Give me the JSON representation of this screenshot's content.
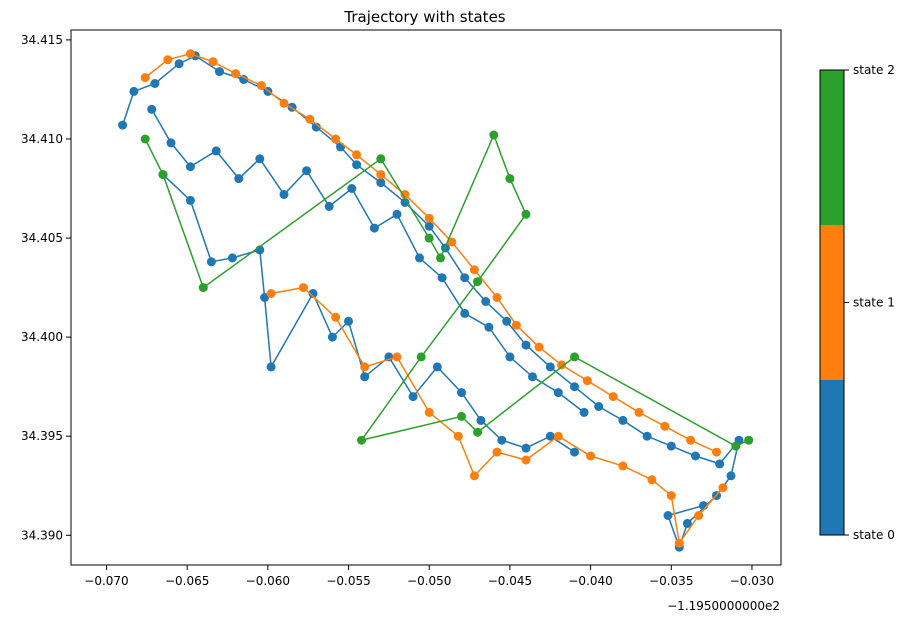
{
  "chart_data": {
    "type": "scatter",
    "title": "Trajectory with states",
    "xlabel": "",
    "ylabel": "",
    "x_offset_label": "−1.1950000000e2",
    "xlim": [
      -0.0722,
      -0.0282
    ],
    "ylim": [
      34.3885,
      34.4155
    ],
    "x_ticks": [
      -0.07,
      -0.065,
      -0.06,
      -0.055,
      -0.05,
      -0.045,
      -0.04,
      -0.035,
      -0.03
    ],
    "x_tick_labels": [
      "−0.070",
      "−0.065",
      "−0.060",
      "−0.055",
      "−0.050",
      "−0.045",
      "−0.040",
      "−0.035",
      "−0.030"
    ],
    "y_ticks": [
      34.39,
      34.395,
      34.4,
      34.405,
      34.41,
      34.415
    ],
    "y_tick_labels": [
      "34.390",
      "34.395",
      "34.400",
      "34.405",
      "34.410",
      "34.415"
    ],
    "grid": false,
    "legend": "colorbar-right",
    "colorbar": {
      "labels": [
        "state 0",
        "state 1",
        "state 2"
      ],
      "colors": [
        "#1f77b4",
        "#ff7f0e",
        "#2ca02c"
      ]
    },
    "series": [
      {
        "state": 0,
        "color": "#1f77b4",
        "points": [
          [
            -0.069,
            34.4107
          ],
          [
            -0.0683,
            34.4124
          ],
          [
            -0.067,
            34.4128
          ],
          [
            -0.0655,
            34.4138
          ],
          [
            -0.0645,
            34.4142
          ],
          [
            -0.063,
            34.4134
          ],
          [
            -0.0615,
            34.413
          ],
          [
            -0.06,
            34.4124
          ],
          [
            -0.0585,
            34.4116
          ],
          [
            -0.057,
            34.4106
          ],
          [
            -0.0555,
            34.4096
          ],
          [
            -0.0545,
            34.4087
          ],
          [
            -0.053,
            34.4078
          ],
          [
            -0.0515,
            34.4068
          ],
          [
            -0.05,
            34.4056
          ],
          [
            -0.049,
            34.4045
          ],
          [
            -0.0478,
            34.403
          ],
          [
            -0.0465,
            34.4018
          ],
          [
            -0.0452,
            34.4008
          ],
          [
            -0.044,
            34.3996
          ],
          [
            -0.0425,
            34.3985
          ],
          [
            -0.041,
            34.3975
          ],
          [
            -0.0395,
            34.3965
          ],
          [
            -0.038,
            34.3958
          ],
          [
            -0.0365,
            34.395
          ],
          [
            -0.035,
            34.3945
          ],
          [
            -0.0335,
            34.394
          ],
          [
            -0.032,
            34.3936
          ],
          [
            -0.0308,
            34.3948
          ],
          [
            -0.0313,
            34.393
          ],
          [
            -0.0322,
            34.392
          ],
          [
            -0.034,
            34.3906
          ],
          [
            -0.0345,
            34.3894
          ],
          [
            -0.0352,
            34.391
          ],
          [
            -0.033,
            34.3915
          ]
        ]
      },
      {
        "state": 0,
        "color": "#1f77b4",
        "points": [
          [
            -0.0665,
            34.4082
          ],
          [
            -0.0648,
            34.4069
          ],
          [
            -0.0635,
            34.4038
          ],
          [
            -0.0622,
            34.404
          ],
          [
            -0.0605,
            34.4044
          ],
          [
            -0.0602,
            34.402
          ],
          [
            -0.0598,
            34.3985
          ],
          [
            -0.0572,
            34.4022
          ],
          [
            -0.056,
            34.4
          ],
          [
            -0.055,
            34.4008
          ],
          [
            -0.054,
            34.398
          ],
          [
            -0.0525,
            34.399
          ],
          [
            -0.051,
            34.397
          ],
          [
            -0.0495,
            34.3985
          ],
          [
            -0.048,
            34.3972
          ],
          [
            -0.0468,
            34.3958
          ],
          [
            -0.0455,
            34.3948
          ],
          [
            -0.044,
            34.3944
          ],
          [
            -0.0425,
            34.395
          ],
          [
            -0.041,
            34.3942
          ]
        ]
      },
      {
        "state": 0,
        "color": "#1f77b4",
        "points": [
          [
            -0.0672,
            34.4115
          ],
          [
            -0.066,
            34.4098
          ],
          [
            -0.0648,
            34.4086
          ],
          [
            -0.0632,
            34.4094
          ],
          [
            -0.0618,
            34.408
          ],
          [
            -0.0605,
            34.409
          ],
          [
            -0.059,
            34.4072
          ],
          [
            -0.0576,
            34.4084
          ],
          [
            -0.0562,
            34.4066
          ],
          [
            -0.0548,
            34.4075
          ],
          [
            -0.0534,
            34.4055
          ],
          [
            -0.052,
            34.4062
          ],
          [
            -0.0506,
            34.404
          ],
          [
            -0.0492,
            34.403
          ],
          [
            -0.0478,
            34.4012
          ],
          [
            -0.0463,
            34.4005
          ],
          [
            -0.045,
            34.399
          ],
          [
            -0.0436,
            34.398
          ],
          [
            -0.042,
            34.3972
          ],
          [
            -0.0404,
            34.3962
          ]
        ]
      },
      {
        "state": 1,
        "color": "#ff7f0e",
        "points": [
          [
            -0.0676,
            34.4131
          ],
          [
            -0.0662,
            34.414
          ],
          [
            -0.0648,
            34.4143
          ],
          [
            -0.0634,
            34.4139
          ],
          [
            -0.062,
            34.4133
          ],
          [
            -0.0604,
            34.4127
          ],
          [
            -0.059,
            34.4118
          ],
          [
            -0.0574,
            34.411
          ],
          [
            -0.0558,
            34.41
          ],
          [
            -0.0545,
            34.4092
          ],
          [
            -0.053,
            34.4082
          ],
          [
            -0.0515,
            34.4072
          ],
          [
            -0.05,
            34.406
          ],
          [
            -0.0486,
            34.4048
          ],
          [
            -0.0472,
            34.4034
          ],
          [
            -0.0458,
            34.402
          ],
          [
            -0.0446,
            34.4006
          ],
          [
            -0.0432,
            34.3995
          ],
          [
            -0.0418,
            34.3986
          ],
          [
            -0.0402,
            34.3978
          ],
          [
            -0.0386,
            34.397
          ],
          [
            -0.037,
            34.3962
          ],
          [
            -0.0354,
            34.3955
          ],
          [
            -0.0338,
            34.3948
          ],
          [
            -0.0322,
            34.3942
          ]
        ]
      },
      {
        "state": 1,
        "color": "#ff7f0e",
        "points": [
          [
            -0.0598,
            34.4022
          ],
          [
            -0.0578,
            34.4025
          ],
          [
            -0.0558,
            34.401
          ],
          [
            -0.054,
            34.3985
          ],
          [
            -0.052,
            34.399
          ],
          [
            -0.05,
            34.3962
          ],
          [
            -0.0482,
            34.395
          ],
          [
            -0.0472,
            34.393
          ],
          [
            -0.0458,
            34.3942
          ],
          [
            -0.044,
            34.3938
          ],
          [
            -0.042,
            34.395
          ],
          [
            -0.04,
            34.394
          ],
          [
            -0.038,
            34.3935
          ],
          [
            -0.0362,
            34.3928
          ],
          [
            -0.035,
            34.392
          ],
          [
            -0.0345,
            34.3896
          ],
          [
            -0.0333,
            34.391
          ],
          [
            -0.0318,
            34.3924
          ]
        ]
      },
      {
        "state": 2,
        "color": "#2ca02c",
        "points": [
          [
            -0.0676,
            34.41
          ],
          [
            -0.0665,
            34.4082
          ],
          [
            -0.064,
            34.4025
          ],
          [
            -0.053,
            34.409
          ],
          [
            -0.05,
            34.405
          ],
          [
            -0.0493,
            34.404
          ],
          [
            -0.046,
            34.4102
          ],
          [
            -0.045,
            34.408
          ],
          [
            -0.044,
            34.4062
          ],
          [
            -0.047,
            34.4028
          ],
          [
            -0.0505,
            34.399
          ],
          [
            -0.0542,
            34.3948
          ],
          [
            -0.048,
            34.396
          ],
          [
            -0.047,
            34.3952
          ],
          [
            -0.041,
            34.399
          ],
          [
            -0.031,
            34.3945
          ],
          [
            -0.0302,
            34.3948
          ]
        ]
      }
    ]
  }
}
